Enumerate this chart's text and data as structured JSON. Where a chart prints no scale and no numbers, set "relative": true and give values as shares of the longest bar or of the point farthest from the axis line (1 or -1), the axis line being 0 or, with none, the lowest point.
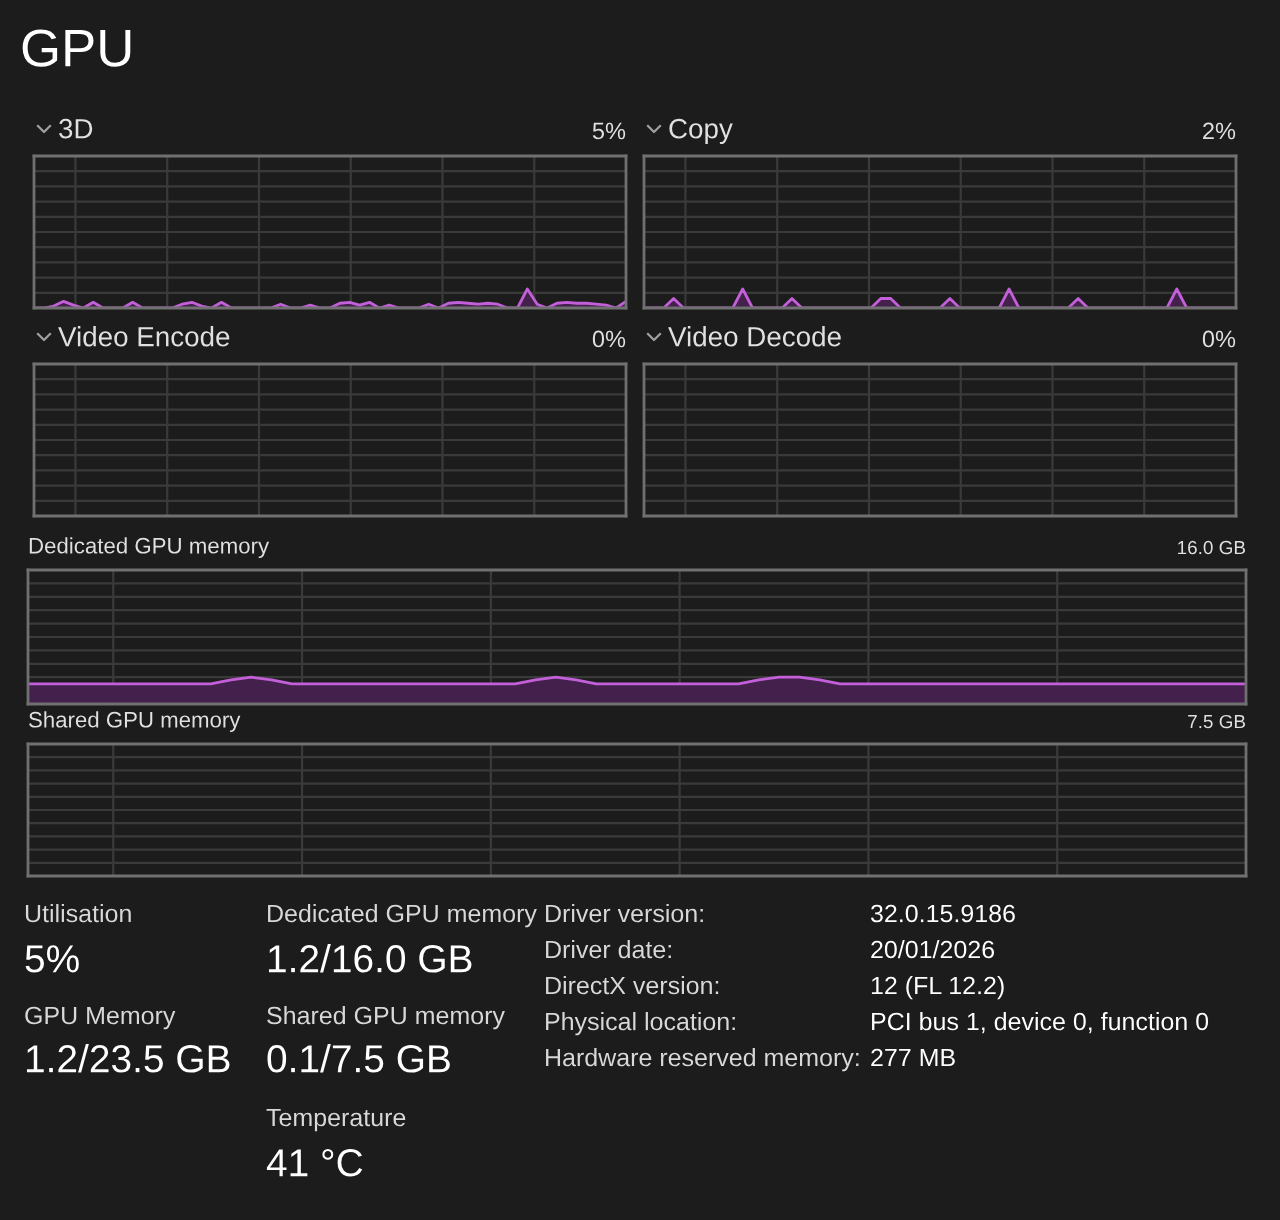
{
  "chart_data": [
    {
      "type": "other",
      "title": "GPU"
    },
    {
      "type": "area",
      "title": "3D",
      "annotations": [
        "5%"
      ],
      "relative": true,
      "grid": true,
      "categories": [
        null,
        null,
        null,
        null,
        null,
        null,
        null,
        null,
        null,
        null,
        null,
        null,
        null,
        null,
        null,
        null,
        null,
        null,
        null,
        null,
        null,
        null,
        null,
        null,
        null,
        null,
        null,
        null,
        null,
        null,
        null,
        null,
        null,
        null,
        null,
        null,
        null,
        null,
        null,
        null,
        null,
        null,
        null,
        null,
        null,
        null,
        null,
        null,
        null,
        null,
        null,
        null,
        null,
        null,
        null,
        null,
        null,
        null,
        null,
        null,
        null
      ],
      "series": [
        {
          "color": "#c35fd8",
          "values": [
            0,
            0,
            0.1,
            0.35,
            0.15,
            0,
            0.3,
            0,
            0,
            0,
            0.3,
            0,
            0,
            0,
            0,
            0.2,
            0.3,
            0.1,
            0,
            0.3,
            0,
            0,
            0,
            0,
            0,
            0.2,
            0,
            0,
            0.15,
            0,
            0,
            0.25,
            0.3,
            0.15,
            0.3,
            0,
            0.15,
            0,
            0,
            0,
            0.2,
            0,
            0.25,
            0.3,
            0.25,
            0.2,
            0.25,
            0.2,
            0,
            0,
            1,
            0.2,
            0,
            0.25,
            0.3,
            0.25,
            0.25,
            0.2,
            0.15,
            0,
            0.35
          ]
        }
      ]
    },
    {
      "type": "area",
      "title": "Copy",
      "annotations": [
        "2%"
      ],
      "relative": true,
      "grid": true,
      "categories": [
        null,
        null,
        null,
        null,
        null,
        null,
        null,
        null,
        null,
        null,
        null,
        null,
        null,
        null,
        null,
        null,
        null,
        null,
        null,
        null,
        null,
        null,
        null,
        null,
        null,
        null,
        null,
        null,
        null,
        null,
        null,
        null,
        null,
        null,
        null,
        null,
        null,
        null,
        null,
        null,
        null,
        null,
        null,
        null,
        null,
        null,
        null,
        null,
        null,
        null,
        null,
        null,
        null,
        null,
        null,
        null,
        null,
        null,
        null,
        null,
        null
      ],
      "series": [
        {
          "color": "#c35fd8",
          "values": [
            0,
            0,
            0,
            0.5,
            0,
            0,
            0,
            0,
            0,
            0,
            1,
            0,
            0,
            0,
            0,
            0.5,
            0,
            0,
            0,
            0,
            0,
            0,
            0,
            0,
            0.5,
            0.5,
            0,
            0,
            0,
            0,
            0,
            0.5,
            0,
            0,
            0,
            0,
            0,
            1,
            0,
            0,
            0,
            0,
            0,
            0,
            0.5,
            0,
            0,
            0,
            0,
            0,
            0,
            0,
            0,
            0,
            1,
            0,
            0,
            0,
            0,
            0,
            0
          ]
        }
      ]
    },
    {
      "type": "other",
      "title": "Video Encode",
      "annotations": [
        "0%"
      ]
    },
    {
      "type": "other",
      "title": "Video Decode",
      "annotations": [
        "0%"
      ]
    },
    {
      "type": "area",
      "title": "Dedicated GPU memory",
      "annotations": [
        "16.0 GB"
      ],
      "relative": true,
      "grid": true,
      "categories": [
        null,
        null,
        null,
        null,
        null,
        null,
        null,
        null,
        null,
        null,
        null,
        null,
        null,
        null,
        null,
        null,
        null,
        null,
        null,
        null,
        null,
        null,
        null,
        null,
        null,
        null,
        null,
        null,
        null,
        null,
        null,
        null,
        null,
        null,
        null,
        null,
        null,
        null,
        null,
        null,
        null,
        null,
        null,
        null,
        null,
        null,
        null,
        null,
        null,
        null,
        null,
        null,
        null,
        null,
        null,
        null,
        null,
        null,
        null,
        null,
        null
      ],
      "series": [
        {
          "color": "#c35fd8",
          "values": [
            0.75,
            0.75,
            0.75,
            0.75,
            0.75,
            0.75,
            0.75,
            0.75,
            0.75,
            0.75,
            0.9,
            1,
            0.9,
            0.75,
            0.75,
            0.75,
            0.75,
            0.75,
            0.75,
            0.75,
            0.75,
            0.75,
            0.75,
            0.75,
            0.75,
            0.9,
            1,
            0.9,
            0.75,
            0.75,
            0.75,
            0.75,
            0.75,
            0.75,
            0.75,
            0.75,
            0.9,
            1,
            1,
            0.9,
            0.75,
            0.75,
            0.75,
            0.75,
            0.75,
            0.75,
            0.75,
            0.75,
            0.75,
            0.75,
            0.75,
            0.75,
            0.75,
            0.75,
            0.75,
            0.75,
            0.75,
            0.75,
            0.75,
            0.75,
            0.75
          ]
        }
      ]
    },
    {
      "type": "other",
      "title": "Shared GPU memory",
      "annotations": [
        "7.5 GB"
      ]
    },
    {
      "type": "other",
      "annotations": [
        "Utilisation",
        "5%",
        "GPU Memory",
        "1.2/23.5 GB",
        "Dedicated GPU memory",
        "1.2/16.0 GB",
        "Shared GPU memory",
        "0.1/7.5 GB",
        "Temperature",
        "41 °C",
        "Driver version:",
        "32.0.15.9186",
        "Driver date:",
        "20/01/2026",
        "DirectX version:",
        "12 (FL 12.2)",
        "Physical location:",
        "PCI bus 1, device 0, function 0",
        "Hardware reserved memory:",
        "277 MB"
      ]
    }
  ]
}
